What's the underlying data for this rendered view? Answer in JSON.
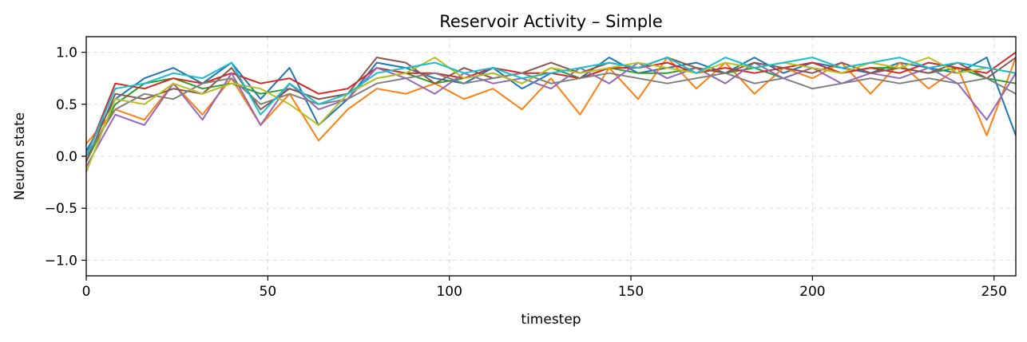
{
  "chart_data": {
    "type": "line",
    "title": "Reservoir Activity – Simple",
    "xlabel": "timestep",
    "ylabel": "Neuron state",
    "xlim": [
      0,
      256
    ],
    "ylim": [
      -1.15,
      1.15
    ],
    "xticks": [
      0,
      50,
      100,
      150,
      200,
      250
    ],
    "yticks": [
      -1.0,
      -0.5,
      0.0,
      0.5,
      1.0
    ],
    "xtick_labels": [
      "0",
      "50",
      "100",
      "150",
      "200",
      "250"
    ],
    "ytick_labels": [
      "−1.0",
      "−0.5",
      "0.0",
      "0.5",
      "1.0"
    ],
    "grid": true,
    "legend": "none",
    "series_x": [
      0,
      8,
      16,
      24,
      32,
      40,
      48,
      56,
      64,
      72,
      80,
      88,
      96,
      104,
      112,
      120,
      128,
      136,
      144,
      152,
      160,
      168,
      176,
      184,
      192,
      200,
      208,
      216,
      224,
      232,
      240,
      248,
      256
    ],
    "series": [
      {
        "color": "#1f77b4",
        "values": [
          0.05,
          0.55,
          0.75,
          0.85,
          0.7,
          0.9,
          0.55,
          0.85,
          0.3,
          0.55,
          0.9,
          0.85,
          0.75,
          0.7,
          0.85,
          0.65,
          0.8,
          0.75,
          0.95,
          0.8,
          0.85,
          0.9,
          0.8,
          0.95,
          0.8,
          0.9,
          0.85,
          0.8,
          0.9,
          0.85,
          0.8,
          0.95,
          0.2
        ]
      },
      {
        "color": "#ff7f0e",
        "values": [
          0.12,
          0.45,
          0.35,
          0.7,
          0.4,
          0.75,
          0.3,
          0.6,
          0.15,
          0.45,
          0.65,
          0.6,
          0.7,
          0.55,
          0.65,
          0.45,
          0.75,
          0.4,
          0.85,
          0.55,
          0.95,
          0.65,
          0.9,
          0.6,
          0.85,
          0.75,
          0.9,
          0.6,
          0.9,
          0.65,
          0.85,
          0.2,
          0.95
        ]
      },
      {
        "color": "#2ca02c",
        "values": [
          -0.05,
          0.5,
          0.7,
          0.75,
          0.65,
          0.7,
          0.6,
          0.65,
          0.55,
          0.6,
          0.75,
          0.8,
          0.7,
          0.75,
          0.8,
          0.7,
          0.85,
          0.75,
          0.85,
          0.8,
          0.8,
          0.85,
          0.8,
          0.85,
          0.75,
          0.85,
          0.8,
          0.85,
          0.85,
          0.8,
          0.85,
          0.75,
          0.7
        ]
      },
      {
        "color": "#d62728",
        "values": [
          0.0,
          0.7,
          0.65,
          0.75,
          0.7,
          0.8,
          0.7,
          0.75,
          0.6,
          0.65,
          0.85,
          0.8,
          0.8,
          0.75,
          0.85,
          0.8,
          0.8,
          0.75,
          0.85,
          0.85,
          0.9,
          0.8,
          0.85,
          0.8,
          0.85,
          0.9,
          0.8,
          0.85,
          0.8,
          0.9,
          0.85,
          0.8,
          1.0
        ]
      },
      {
        "color": "#9467bd",
        "values": [
          -0.1,
          0.4,
          0.3,
          0.7,
          0.35,
          0.8,
          0.3,
          0.7,
          0.45,
          0.55,
          0.85,
          0.75,
          0.6,
          0.8,
          0.7,
          0.75,
          0.65,
          0.85,
          0.7,
          0.9,
          0.75,
          0.85,
          0.7,
          0.9,
          0.75,
          0.85,
          0.7,
          0.8,
          0.75,
          0.85,
          0.7,
          0.35,
          0.8
        ]
      },
      {
        "color": "#8c564b",
        "values": [
          -0.05,
          0.6,
          0.55,
          0.65,
          0.6,
          0.85,
          0.45,
          0.65,
          0.55,
          0.6,
          0.95,
          0.9,
          0.7,
          0.85,
          0.75,
          0.8,
          0.9,
          0.8,
          0.9,
          0.85,
          0.95,
          0.85,
          0.8,
          0.9,
          0.85,
          0.8,
          0.9,
          0.8,
          0.85,
          0.8,
          0.9,
          0.75,
          0.95
        ]
      },
      {
        "color": "#7f7f7f",
        "values": [
          0.0,
          0.45,
          0.6,
          0.55,
          0.7,
          0.75,
          0.5,
          0.6,
          0.5,
          0.55,
          0.7,
          0.75,
          0.8,
          0.7,
          0.75,
          0.8,
          0.7,
          0.75,
          0.8,
          0.75,
          0.7,
          0.75,
          0.8,
          0.7,
          0.75,
          0.65,
          0.7,
          0.75,
          0.7,
          0.75,
          0.7,
          0.75,
          0.6
        ]
      },
      {
        "color": "#bcbd22",
        "values": [
          -0.15,
          0.55,
          0.5,
          0.7,
          0.6,
          0.7,
          0.65,
          0.5,
          0.3,
          0.6,
          0.75,
          0.8,
          0.95,
          0.75,
          0.8,
          0.7,
          0.85,
          0.8,
          0.85,
          0.9,
          0.85,
          0.8,
          0.9,
          0.85,
          0.9,
          0.85,
          0.8,
          0.9,
          0.85,
          0.95,
          0.8,
          0.85,
          0.8
        ]
      },
      {
        "color": "#17becf",
        "values": [
          0.0,
          0.65,
          0.7,
          0.8,
          0.75,
          0.9,
          0.4,
          0.7,
          0.5,
          0.6,
          0.8,
          0.85,
          0.9,
          0.8,
          0.85,
          0.75,
          0.8,
          0.85,
          0.9,
          0.85,
          0.95,
          0.8,
          0.95,
          0.85,
          0.9,
          0.95,
          0.85,
          0.9,
          0.95,
          0.85,
          0.9,
          0.85,
          0.8
        ]
      }
    ]
  }
}
